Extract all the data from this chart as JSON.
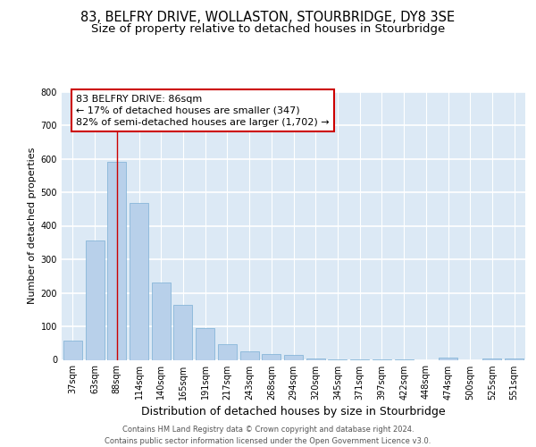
{
  "title": "83, BELFRY DRIVE, WOLLASTON, STOURBRIDGE, DY8 3SE",
  "subtitle": "Size of property relative to detached houses in Stourbridge",
  "xlabel": "Distribution of detached houses by size in Stourbridge",
  "ylabel": "Number of detached properties",
  "categories": [
    "37sqm",
    "63sqm",
    "88sqm",
    "114sqm",
    "140sqm",
    "165sqm",
    "191sqm",
    "217sqm",
    "243sqm",
    "268sqm",
    "294sqm",
    "320sqm",
    "345sqm",
    "371sqm",
    "397sqm",
    "422sqm",
    "448sqm",
    "474sqm",
    "500sqm",
    "525sqm",
    "551sqm"
  ],
  "values": [
    58,
    355,
    590,
    468,
    232,
    163,
    95,
    48,
    25,
    18,
    15,
    5,
    2,
    2,
    2,
    1,
    0,
    8,
    0,
    5,
    5
  ],
  "bar_color": "#b8d0ea",
  "bar_edge_color": "#7aafd4",
  "vline_x_index": 2,
  "vline_color": "#cc0000",
  "annotation_line1": "83 BELFRY DRIVE: 86sqm",
  "annotation_line2": "← 17% of detached houses are smaller (347)",
  "annotation_line3": "82% of semi-detached houses are larger (1,702) →",
  "annotation_box_color": "#cc0000",
  "annotation_box_bg": "#ffffff",
  "ylim": [
    0,
    800
  ],
  "yticks": [
    0,
    100,
    200,
    300,
    400,
    500,
    600,
    700,
    800
  ],
  "footer_line1": "Contains HM Land Registry data © Crown copyright and database right 2024.",
  "footer_line2": "Contains public sector information licensed under the Open Government Licence v3.0.",
  "bg_color": "#dce9f5",
  "fig_bg_color": "#ffffff",
  "grid_color": "#ffffff",
  "title_fontsize": 10.5,
  "subtitle_fontsize": 9.5,
  "xlabel_fontsize": 9,
  "ylabel_fontsize": 8,
  "tick_fontsize": 7,
  "annotation_fontsize": 8,
  "footer_fontsize": 6
}
